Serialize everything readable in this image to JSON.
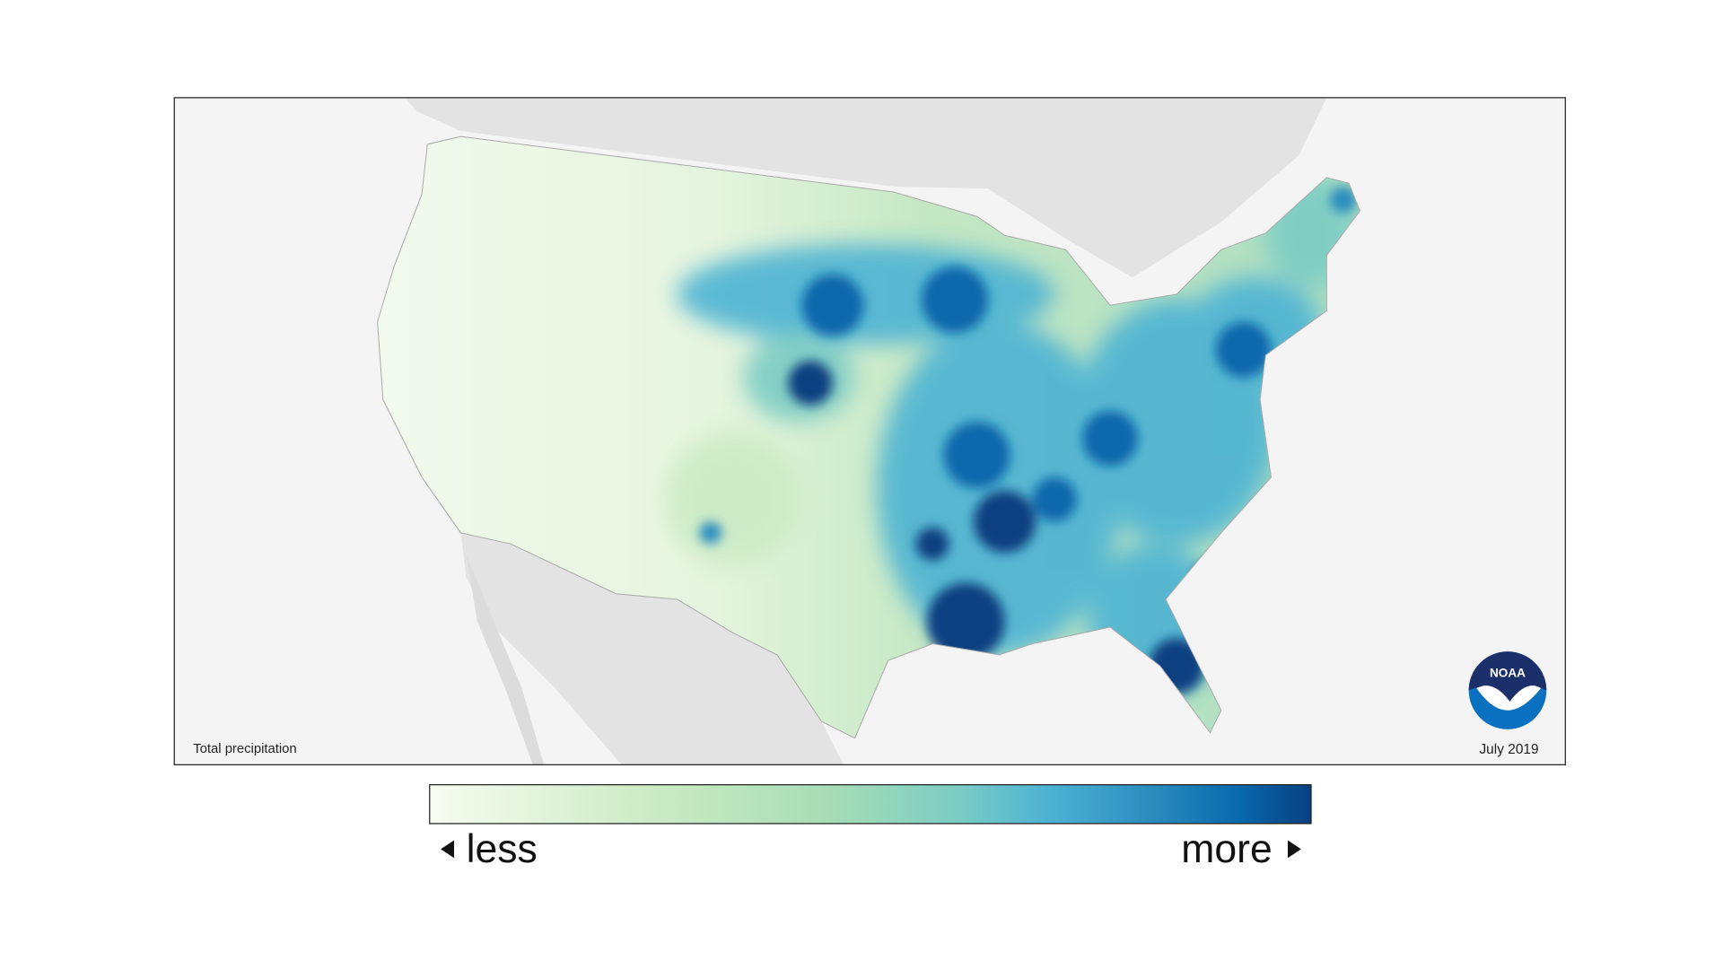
{
  "map": {
    "caption": "Total precipitation",
    "date": "July 2019",
    "logo": "NOAA"
  },
  "legend": {
    "low_label": "less",
    "high_label": "more"
  }
}
